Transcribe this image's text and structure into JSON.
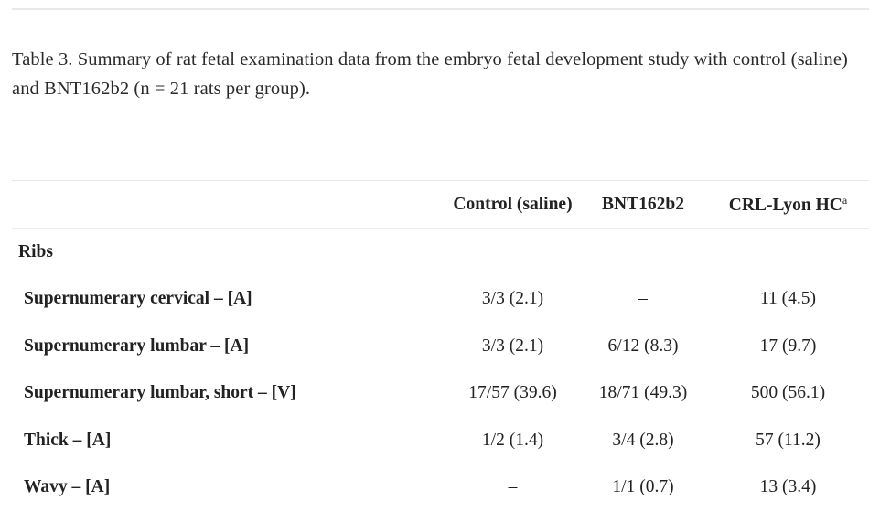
{
  "caption": {
    "label": "Table 3.",
    "text": "Summary of rat fetal examination data from the embryo fetal development study with control (saline) and BNT162b2 (n = 21 rats per group)."
  },
  "table": {
    "headers": [
      "",
      "Control (saline)",
      "BNT162b2",
      "CRL-Lyon HC",
      "a"
    ],
    "section": "Ribs",
    "rows": [
      {
        "label": "Supernumerary cervical – [A]",
        "control": "3/3 (2.1)",
        "bnt": "–",
        "crl": "11 (4.5)"
      },
      {
        "label": "Supernumerary lumbar – [A]",
        "control": "3/3 (2.1)",
        "bnt": "6/12 (8.3)",
        "crl": "17 (9.7)"
      },
      {
        "label": "Supernumerary lumbar, short – [V]",
        "control": "17/57 (39.6)",
        "bnt": "18/71 (49.3)",
        "crl": "500 (56.1)"
      },
      {
        "label": "Thick – [A]",
        "control": "1/2 (1.4)",
        "bnt": "3/4 (2.8)",
        "crl": "57 (11.2)"
      },
      {
        "label": "Wavy – [A]",
        "control": "–",
        "bnt": "1/1 (0.7)",
        "crl": "13 (3.4)"
      }
    ]
  }
}
